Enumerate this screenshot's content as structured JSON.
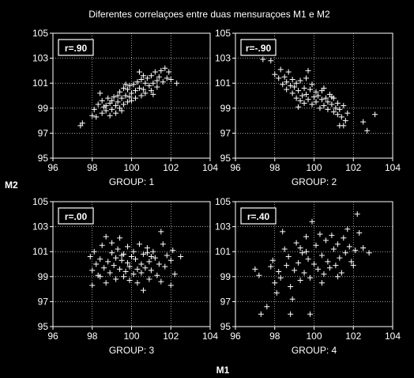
{
  "figure": {
    "title": "Diferentes correlaçoes entre duas mensuraçoes M1 e M2",
    "xlabel": "M1",
    "ylabel": "M2"
  },
  "colors": {
    "background": "#000000",
    "foreground": "#ffffff"
  },
  "chart_data": [
    {
      "type": "scatter",
      "title": "GROUP: 1",
      "annotation": "r=.90",
      "xlim": [
        96,
        104
      ],
      "ylim": [
        95,
        105
      ],
      "xticks": [
        "96",
        "98",
        "100",
        "102",
        "104"
      ],
      "yticks": [
        "95",
        "97",
        "99",
        "101",
        "103",
        "105"
      ],
      "grid": true,
      "points": [
        [
          97.4,
          97.6
        ],
        [
          97.5,
          97.8
        ],
        [
          98.0,
          98.4
        ],
        [
          98.1,
          98.9
        ],
        [
          98.2,
          98.3
        ],
        [
          98.3,
          99.3
        ],
        [
          98.4,
          100.2
        ],
        [
          98.5,
          98.6
        ],
        [
          98.5,
          99.6
        ],
        [
          98.7,
          98.8
        ],
        [
          98.7,
          99.2
        ],
        [
          98.8,
          99.8
        ],
        [
          98.9,
          98.4
        ],
        [
          98.9,
          99.4
        ],
        [
          99.0,
          98.9
        ],
        [
          99.0,
          99.6
        ],
        [
          99.1,
          99.9
        ],
        [
          99.2,
          99.2
        ],
        [
          99.2,
          98.6
        ],
        [
          99.3,
          99.5
        ],
        [
          99.4,
          100.3
        ],
        [
          99.4,
          99.0
        ],
        [
          99.5,
          99.8
        ],
        [
          99.5,
          98.8
        ],
        [
          99.6,
          99.3
        ],
        [
          99.6,
          100.6
        ],
        [
          99.7,
          100.0
        ],
        [
          99.8,
          99.5
        ],
        [
          99.8,
          100.5
        ],
        [
          99.9,
          100.8
        ],
        [
          99.9,
          99.9
        ],
        [
          100.0,
          100.2
        ],
        [
          100.0,
          99.6
        ],
        [
          100.1,
          100.9
        ],
        [
          100.2,
          100.4
        ],
        [
          100.2,
          99.8
        ],
        [
          100.3,
          101.1
        ],
        [
          100.4,
          100.6
        ],
        [
          100.5,
          100.0
        ],
        [
          100.5,
          101.3
        ],
        [
          100.6,
          100.5
        ],
        [
          100.7,
          101.0
        ],
        [
          100.7,
          100.2
        ],
        [
          100.8,
          101.4
        ],
        [
          100.9,
          100.8
        ],
        [
          101.0,
          101.6
        ],
        [
          101.0,
          100.4
        ],
        [
          101.1,
          101.0
        ],
        [
          101.2,
          101.9
        ],
        [
          101.3,
          101.2
        ],
        [
          101.3,
          100.7
        ],
        [
          101.4,
          101.5
        ],
        [
          101.5,
          102.0
        ],
        [
          101.6,
          101.1
        ],
        [
          101.7,
          102.2
        ],
        [
          101.8,
          101.4
        ],
        [
          101.9,
          101.9
        ],
        [
          102.0,
          101.3
        ],
        [
          102.3,
          101.0
        ],
        [
          100.6,
          101.6
        ],
        [
          99.3,
          100.0
        ],
        [
          98.6,
          99.1
        ],
        [
          100.4,
          101.9
        ],
        [
          101.1,
          100.1
        ],
        [
          99.7,
          100.9
        ]
      ]
    },
    {
      "type": "scatter",
      "title": "GROUP: 2",
      "annotation": "r=-.90",
      "xlim": [
        96,
        104
      ],
      "ylim": [
        95,
        105
      ],
      "xticks": [
        "96",
        "98",
        "100",
        "102",
        "104"
      ],
      "yticks": [
        "95",
        "97",
        "99",
        "101",
        "103",
        "105"
      ],
      "grid": true,
      "points": [
        [
          97.4,
          102.9
        ],
        [
          97.8,
          102.8
        ],
        [
          98.0,
          101.7
        ],
        [
          98.2,
          101.4
        ],
        [
          98.3,
          102.1
        ],
        [
          98.4,
          100.9
        ],
        [
          98.5,
          101.5
        ],
        [
          98.6,
          100.5
        ],
        [
          98.6,
          101.1
        ],
        [
          98.7,
          101.9
        ],
        [
          98.8,
          100.8
        ],
        [
          98.9,
          101.3
        ],
        [
          98.9,
          100.2
        ],
        [
          99.0,
          100.7
        ],
        [
          99.1,
          101.0
        ],
        [
          99.1,
          99.8
        ],
        [
          99.2,
          100.4
        ],
        [
          99.3,
          101.2
        ],
        [
          99.3,
          99.6
        ],
        [
          99.4,
          100.0
        ],
        [
          99.5,
          100.6
        ],
        [
          99.5,
          99.4
        ],
        [
          99.6,
          101.4
        ],
        [
          99.6,
          100.1
        ],
        [
          99.7,
          99.7
        ],
        [
          99.7,
          102.0
        ],
        [
          99.8,
          100.5
        ],
        [
          99.9,
          99.3
        ],
        [
          99.9,
          100.9
        ],
        [
          100.0,
          99.9
        ],
        [
          100.1,
          100.3
        ],
        [
          100.1,
          99.5
        ],
        [
          100.2,
          100.0
        ],
        [
          100.3,
          99.0
        ],
        [
          100.4,
          99.7
        ],
        [
          100.4,
          100.4
        ],
        [
          100.5,
          99.2
        ],
        [
          100.6,
          99.8
        ],
        [
          100.7,
          98.9
        ],
        [
          100.7,
          99.5
        ],
        [
          100.8,
          100.1
        ],
        [
          100.9,
          99.3
        ],
        [
          101.0,
          98.7
        ],
        [
          101.0,
          99.8
        ],
        [
          101.1,
          99.0
        ],
        [
          101.2,
          98.5
        ],
        [
          101.2,
          99.4
        ],
        [
          101.3,
          97.6
        ],
        [
          101.3,
          98.9
        ],
        [
          101.4,
          98.3
        ],
        [
          101.5,
          99.2
        ],
        [
          101.5,
          97.6
        ],
        [
          101.6,
          98.0
        ],
        [
          101.7,
          98.6
        ],
        [
          102.5,
          97.9
        ],
        [
          102.7,
          97.2
        ],
        [
          103.1,
          98.5
        ],
        [
          100.5,
          100.6
        ],
        [
          99.2,
          99.1
        ],
        [
          100.9,
          99.9
        ]
      ]
    },
    {
      "type": "scatter",
      "title": "GROUP: 3",
      "annotation": "r=.00",
      "xlim": [
        96,
        104
      ],
      "ylim": [
        95,
        105
      ],
      "xticks": [
        "96",
        "98",
        "100",
        "102",
        "104"
      ],
      "yticks": [
        "95",
        "97",
        "99",
        "101",
        "103",
        "105"
      ],
      "grid": true,
      "points": [
        [
          97.9,
          100.6
        ],
        [
          98.0,
          99.5
        ],
        [
          98.0,
          98.3
        ],
        [
          98.1,
          101.0
        ],
        [
          98.2,
          100.0
        ],
        [
          98.3,
          99.1
        ],
        [
          98.4,
          100.4
        ],
        [
          98.5,
          101.5
        ],
        [
          98.6,
          99.7
        ],
        [
          98.7,
          102.2
        ],
        [
          98.7,
          98.5
        ],
        [
          98.8,
          100.2
        ],
        [
          98.9,
          99.3
        ],
        [
          99.0,
          100.9
        ],
        [
          99.0,
          101.7
        ],
        [
          99.1,
          99.9
        ],
        [
          99.2,
          98.8
        ],
        [
          99.2,
          100.5
        ],
        [
          99.3,
          101.2
        ],
        [
          99.4,
          99.6
        ],
        [
          99.4,
          102.1
        ],
        [
          99.5,
          100.3
        ],
        [
          99.6,
          99.0
        ],
        [
          99.6,
          100.8
        ],
        [
          99.7,
          99.4
        ],
        [
          99.8,
          101.4
        ],
        [
          99.8,
          100.1
        ],
        [
          99.9,
          98.7
        ],
        [
          99.9,
          99.8
        ],
        [
          100.0,
          100.6
        ],
        [
          100.1,
          101.0
        ],
        [
          100.1,
          99.2
        ],
        [
          100.2,
          100.4
        ],
        [
          100.3,
          99.6
        ],
        [
          100.3,
          98.5
        ],
        [
          100.4,
          101.6
        ],
        [
          100.5,
          100.0
        ],
        [
          100.5,
          99.3
        ],
        [
          100.6,
          100.8
        ],
        [
          100.6,
          97.9
        ],
        [
          100.7,
          99.7
        ],
        [
          100.8,
          101.3
        ],
        [
          100.9,
          100.2
        ],
        [
          100.9,
          98.8
        ],
        [
          101.0,
          99.5
        ],
        [
          101.1,
          101.0
        ],
        [
          101.2,
          100.5
        ],
        [
          101.3,
          99.1
        ],
        [
          101.4,
          100.0
        ],
        [
          101.5,
          98.6
        ],
        [
          101.5,
          102.6
        ],
        [
          101.6,
          101.6
        ],
        [
          101.7,
          99.8
        ],
        [
          101.8,
          100.7
        ],
        [
          102.0,
          100.3
        ],
        [
          102.0,
          98.3
        ],
        [
          102.1,
          101.1
        ],
        [
          102.2,
          99.2
        ],
        [
          102.5,
          100.6
        ],
        [
          99.5,
          100.7
        ],
        [
          100.8,
          100.9
        ],
        [
          98.4,
          99.0
        ],
        [
          101.0,
          100.6
        ]
      ]
    },
    {
      "type": "scatter",
      "title": "GROUP: 4",
      "annotation": "r=.40",
      "xlim": [
        96,
        104
      ],
      "ylim": [
        95,
        105
      ],
      "xticks": [
        "96",
        "98",
        "100",
        "102",
        "104"
      ],
      "yticks": [
        "95",
        "97",
        "99",
        "101",
        "103",
        "105"
      ],
      "grid": true,
      "points": [
        [
          97.0,
          99.6
        ],
        [
          97.2,
          99.1
        ],
        [
          97.3,
          96.0
        ],
        [
          97.6,
          96.6
        ],
        [
          97.8,
          99.8
        ],
        [
          97.9,
          100.3
        ],
        [
          98.0,
          98.5
        ],
        [
          98.1,
          97.7
        ],
        [
          98.2,
          99.4
        ],
        [
          98.3,
          98.9
        ],
        [
          98.4,
          102.6
        ],
        [
          98.5,
          101.2
        ],
        [
          98.6,
          99.9
        ],
        [
          98.7,
          100.6
        ],
        [
          98.8,
          96.0
        ],
        [
          98.8,
          98.2
        ],
        [
          98.9,
          97.2
        ],
        [
          99.0,
          99.5
        ],
        [
          99.1,
          101.7
        ],
        [
          99.2,
          100.1
        ],
        [
          99.3,
          98.7
        ],
        [
          99.4,
          100.9
        ],
        [
          99.5,
          99.3
        ],
        [
          99.6,
          102.2
        ],
        [
          99.6,
          101.0
        ],
        [
          99.7,
          100.4
        ],
        [
          99.8,
          96.0
        ],
        [
          99.8,
          98.9
        ],
        [
          99.9,
          103.4
        ],
        [
          100.0,
          100.0
        ],
        [
          100.1,
          101.5
        ],
        [
          100.2,
          99.6
        ],
        [
          100.3,
          102.4
        ],
        [
          100.4,
          100.7
        ],
        [
          100.5,
          99.2
        ],
        [
          100.6,
          101.9
        ],
        [
          100.7,
          100.2
        ],
        [
          100.8,
          99.7
        ],
        [
          100.9,
          102.3
        ],
        [
          101.0,
          101.2
        ],
        [
          101.1,
          99.9
        ],
        [
          101.2,
          101.6
        ],
        [
          101.3,
          100.5
        ],
        [
          101.4,
          99.3
        ],
        [
          101.5,
          102.1
        ],
        [
          101.6,
          100.9
        ],
        [
          101.7,
          102.8
        ],
        [
          101.8,
          101.4
        ],
        [
          101.9,
          100.2
        ],
        [
          102.0,
          99.9
        ],
        [
          102.1,
          101.1
        ],
        [
          102.2,
          104.0
        ],
        [
          102.3,
          102.5
        ],
        [
          102.5,
          101.3
        ],
        [
          102.8,
          100.9
        ],
        [
          100.4,
          98.5
        ],
        [
          101.2,
          99.0
        ],
        [
          99.3,
          101.3
        ]
      ]
    }
  ]
}
